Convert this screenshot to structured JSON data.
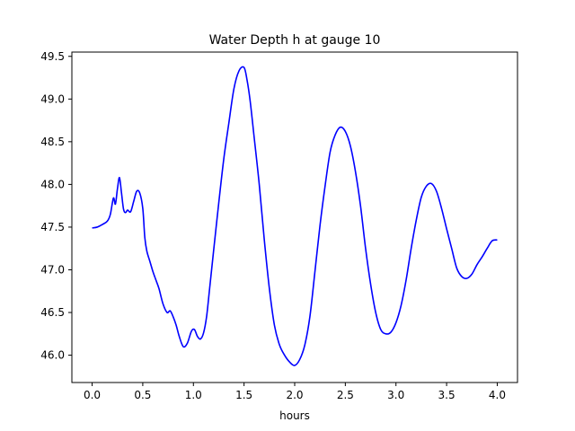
{
  "chart_data": {
    "type": "line",
    "title": "Water Depth h at gauge 10",
    "xlabel": "hours",
    "ylabel": "",
    "xlim": [
      -0.2,
      4.2
    ],
    "ylim": [
      45.68,
      49.55
    ],
    "x_ticks": [
      0.0,
      0.5,
      1.0,
      1.5,
      2.0,
      2.5,
      3.0,
      3.5,
      4.0
    ],
    "x_tick_labels": [
      "0.0",
      "0.5",
      "1.0",
      "1.5",
      "2.0",
      "2.5",
      "3.0",
      "3.5",
      "4.0"
    ],
    "y_ticks": [
      46.0,
      46.5,
      47.0,
      47.5,
      48.0,
      48.5,
      49.0,
      49.5
    ],
    "y_tick_labels": [
      "46.0",
      "46.5",
      "47.0",
      "47.5",
      "48.0",
      "48.5",
      "49.0",
      "49.5"
    ],
    "grid": false,
    "series": [
      {
        "color": "#0000ff",
        "x": [
          0.0,
          0.05,
          0.1,
          0.15,
          0.18,
          0.21,
          0.23,
          0.25,
          0.27,
          0.29,
          0.31,
          0.33,
          0.35,
          0.38,
          0.41,
          0.44,
          0.47,
          0.5,
          0.52,
          0.54,
          0.57,
          0.6,
          0.63,
          0.66,
          0.7,
          0.74,
          0.77,
          0.8,
          0.83,
          0.86,
          0.9,
          0.94,
          0.98,
          1.01,
          1.04,
          1.07,
          1.1,
          1.13,
          1.16,
          1.2,
          1.25,
          1.3,
          1.35,
          1.4,
          1.45,
          1.5,
          1.53,
          1.56,
          1.6,
          1.65,
          1.7,
          1.75,
          1.8,
          1.85,
          1.9,
          1.95,
          2.0,
          2.05,
          2.1,
          2.15,
          2.2,
          2.25,
          2.3,
          2.35,
          2.4,
          2.45,
          2.5,
          2.55,
          2.6,
          2.65,
          2.7,
          2.75,
          2.8,
          2.85,
          2.9,
          2.95,
          3.0,
          3.05,
          3.1,
          3.15,
          3.2,
          3.25,
          3.3,
          3.35,
          3.4,
          3.45,
          3.5,
          3.55,
          3.6,
          3.65,
          3.7,
          3.75,
          3.8,
          3.85,
          3.9,
          3.95,
          4.0
        ],
        "y": [
          47.49,
          47.5,
          47.53,
          47.57,
          47.65,
          47.84,
          47.77,
          47.95,
          48.08,
          47.9,
          47.71,
          47.67,
          47.7,
          47.68,
          47.8,
          47.92,
          47.9,
          47.72,
          47.38,
          47.22,
          47.1,
          46.98,
          46.88,
          46.78,
          46.6,
          46.5,
          46.52,
          46.45,
          46.35,
          46.22,
          46.1,
          46.14,
          46.28,
          46.3,
          46.22,
          46.19,
          46.26,
          46.45,
          46.78,
          47.23,
          47.78,
          48.3,
          48.72,
          49.12,
          49.33,
          49.37,
          49.22,
          48.98,
          48.55,
          48.0,
          47.35,
          46.78,
          46.35,
          46.12,
          46.0,
          45.92,
          45.88,
          45.95,
          46.12,
          46.45,
          46.98,
          47.52,
          47.98,
          48.38,
          48.58,
          48.67,
          48.62,
          48.45,
          48.15,
          47.75,
          47.25,
          46.83,
          46.5,
          46.3,
          46.25,
          46.27,
          46.38,
          46.58,
          46.88,
          47.25,
          47.58,
          47.85,
          47.98,
          48.01,
          47.92,
          47.72,
          47.48,
          47.25,
          47.02,
          46.92,
          46.9,
          46.95,
          47.06,
          47.15,
          47.25,
          47.34,
          47.35
        ]
      }
    ]
  }
}
